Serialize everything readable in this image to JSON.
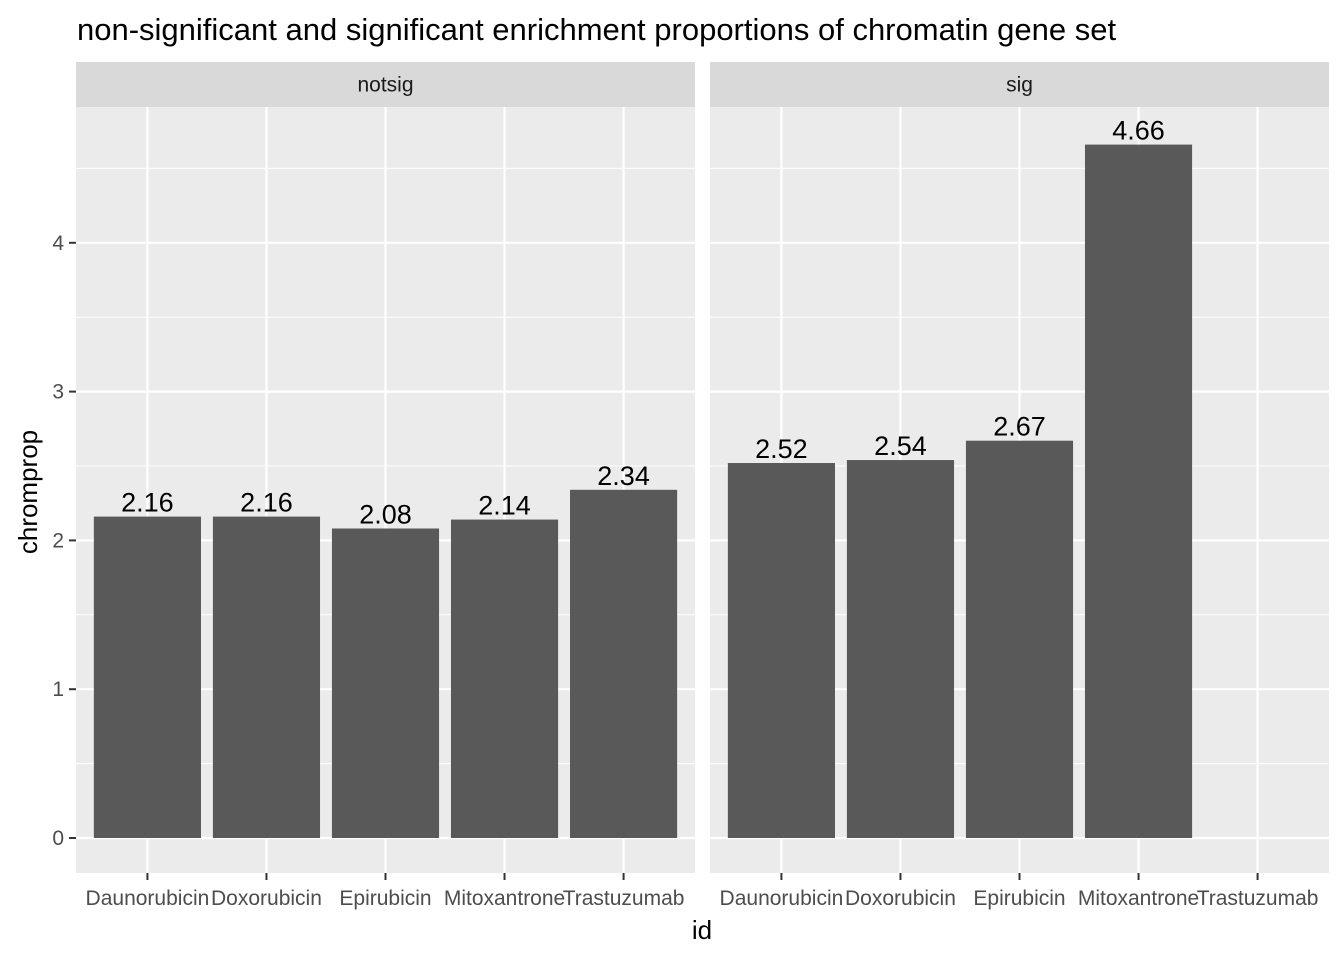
{
  "chart_data": {
    "type": "bar",
    "title": "non-significant and significant enrichment proportions of chromatin gene set",
    "xlabel": "id",
    "ylabel": "chromprop",
    "categories": [
      "Daunorubicin",
      "Doxorubicin",
      "Epirubicin",
      "Mitoxantrone",
      "Trastuzumab"
    ],
    "ylim": [
      0,
      4.9
    ],
    "yticks": [
      0,
      1,
      2,
      3,
      4
    ],
    "grid": true,
    "bar_color": "#595959",
    "panel_background": "#ebebeb",
    "strip_background": "#d9d9d9",
    "grid_color": "#ffffff",
    "facets": [
      {
        "label": "notsig",
        "values": [
          2.16,
          2.16,
          2.08,
          2.14,
          2.34
        ],
        "value_labels": [
          "2.16",
          "2.16",
          "2.08",
          "2.14",
          "2.34"
        ]
      },
      {
        "label": "sig",
        "values": [
          2.52,
          2.54,
          2.67,
          4.66,
          null
        ],
        "value_labels": [
          "2.52",
          "2.54",
          "2.67",
          "4.66",
          ""
        ]
      }
    ]
  }
}
